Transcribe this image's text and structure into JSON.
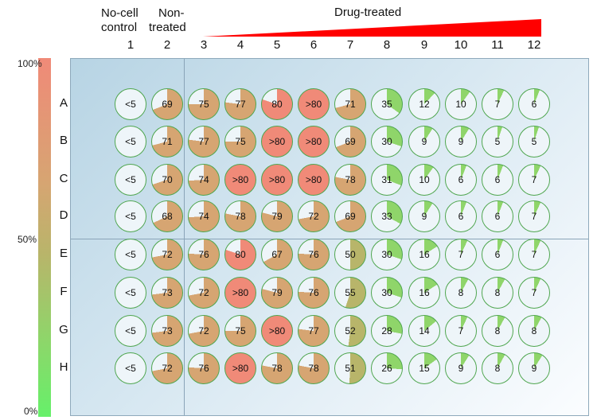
{
  "header": {
    "no_cell_line1": "No-cell",
    "no_cell_line2": "control",
    "non_treated_line1": "Non-",
    "non_treated_line2": "treated",
    "drug_treated": "Drug-treated"
  },
  "columns": [
    "1",
    "2",
    "3",
    "4",
    "5",
    "6",
    "7",
    "8",
    "9",
    "10",
    "11",
    "12"
  ],
  "rows": [
    "A",
    "B",
    "C",
    "D",
    "E",
    "F",
    "G",
    "H"
  ],
  "colorbar": {
    "top": "100%",
    "mid": "50%",
    "bottom": "0%"
  },
  "colors": {
    "high": "#f08a78",
    "mid_high": "#d6a572",
    "mid": "#b8b56a",
    "low": "#8fd56a",
    "very_low": "#66f06a",
    "well_border": "#4fa64f",
    "well_bg": "#eef5f9",
    "triangle": "#ff0000"
  },
  "wells": [
    [
      "<5",
      "69",
      "75",
      "77",
      "80",
      ">80",
      "71",
      "35",
      "12",
      "10",
      "7",
      "6"
    ],
    [
      "<5",
      "71",
      "77",
      "75",
      ">80",
      ">80",
      "69",
      "30",
      "9",
      "9",
      "5",
      "5"
    ],
    [
      "<5",
      "70",
      "74",
      ">80",
      ">80",
      ">80",
      "78",
      "31",
      "10",
      "6",
      "6",
      "7"
    ],
    [
      "<5",
      "68",
      "74",
      "78",
      "79",
      "72",
      "69",
      "33",
      "9",
      "6",
      "6",
      "7"
    ],
    [
      "<5",
      "72",
      "76",
      "80",
      "67",
      "76",
      "50",
      "30",
      "16",
      "7",
      "6",
      "7"
    ],
    [
      "<5",
      "73",
      "72",
      ">80",
      "79",
      "76",
      "55",
      "30",
      "16",
      "8",
      "8",
      "7"
    ],
    [
      "<5",
      "73",
      "72",
      "75",
      ">80",
      "77",
      "52",
      "28",
      "14",
      "7",
      "8",
      "8"
    ],
    [
      "<5",
      "72",
      "76",
      ">80",
      "78",
      "78",
      "51",
      "26",
      "15",
      "9",
      "8",
      "9"
    ]
  ]
}
